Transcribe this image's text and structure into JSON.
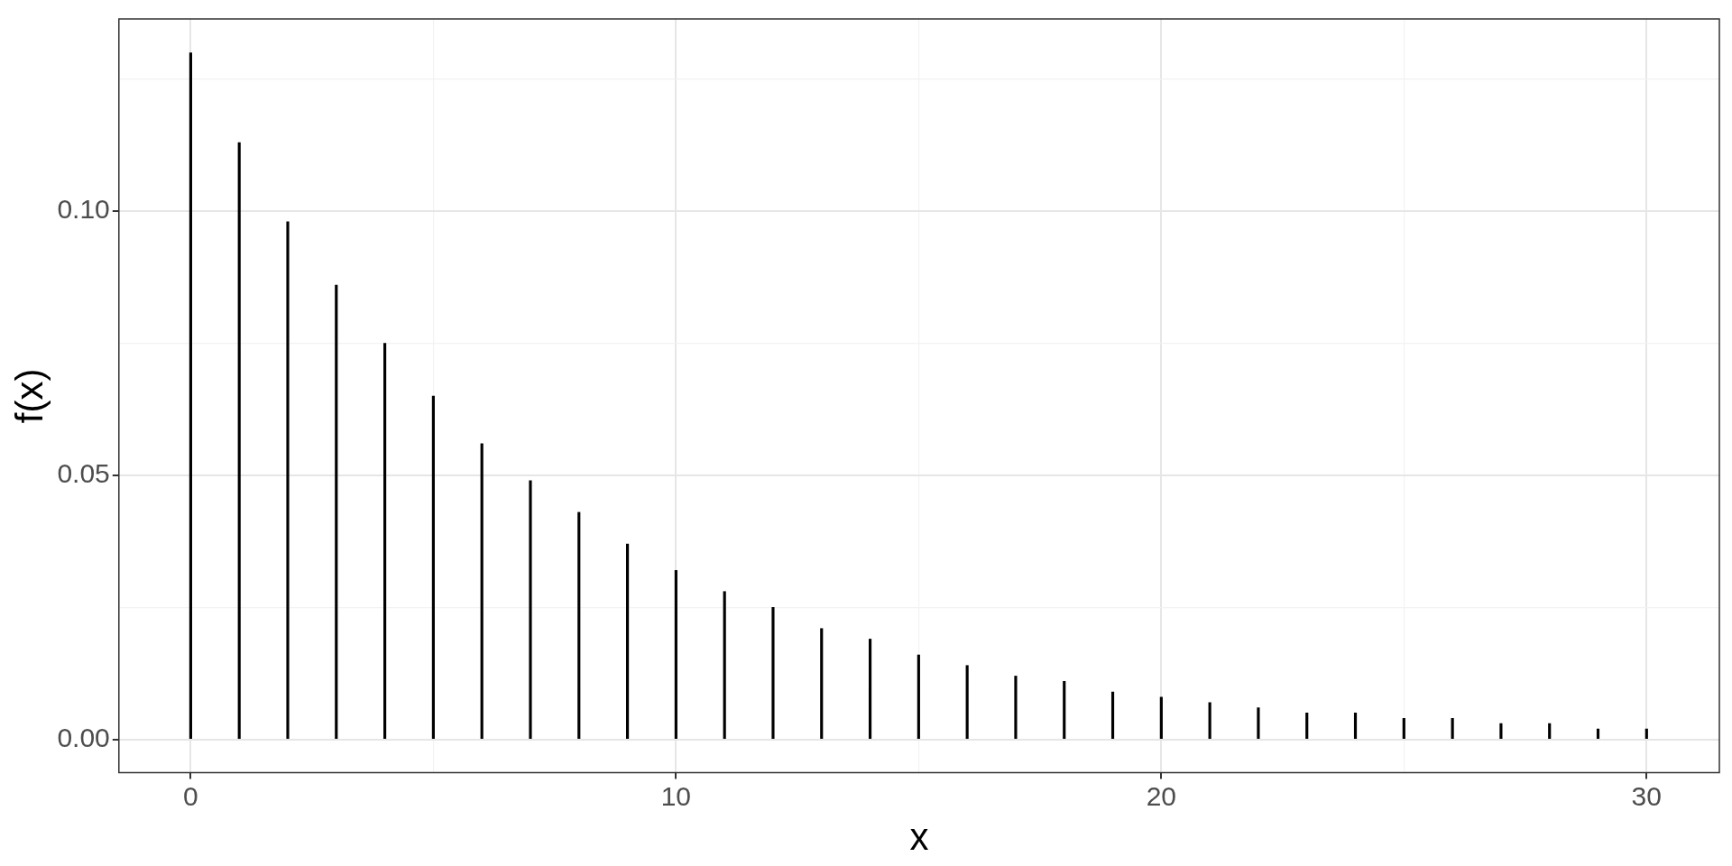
{
  "chart_data": {
    "type": "bar",
    "xlabel": "x",
    "ylabel": "f(x)",
    "x": [
      0,
      1,
      2,
      3,
      4,
      5,
      6,
      7,
      8,
      9,
      10,
      11,
      12,
      13,
      14,
      15,
      16,
      17,
      18,
      19,
      20,
      21,
      22,
      23,
      24,
      25,
      26,
      27,
      28,
      29,
      30
    ],
    "values": [
      0.13,
      0.113,
      0.098,
      0.086,
      0.075,
      0.065,
      0.056,
      0.049,
      0.043,
      0.037,
      0.032,
      0.028,
      0.025,
      0.021,
      0.019,
      0.016,
      0.014,
      0.012,
      0.011,
      0.009,
      0.008,
      0.007,
      0.006,
      0.005,
      0.005,
      0.004,
      0.004,
      0.003,
      0.003,
      0.002,
      0.002
    ],
    "color": "#000000",
    "xlim": [
      -1.48,
      31.5
    ],
    "ylim": [
      -0.0063,
      0.1364
    ],
    "xticks": [
      0,
      {
        "value": 5,
        "label": null
      },
      10,
      {
        "value": 15,
        "label": null
      },
      20,
      {
        "value": 25,
        "label": null
      },
      30
    ],
    "yticks": [
      {
        "value": 0,
        "label": "0.00"
      },
      {
        "value": 0.025,
        "label": null
      },
      {
        "value": 0.05,
        "label": "0.05"
      },
      {
        "value": 0.075,
        "label": null
      },
      {
        "value": 0.1,
        "label": "0.10"
      },
      {
        "value": 0.125,
        "label": null
      }
    ],
    "grid": true,
    "legend": false
  }
}
